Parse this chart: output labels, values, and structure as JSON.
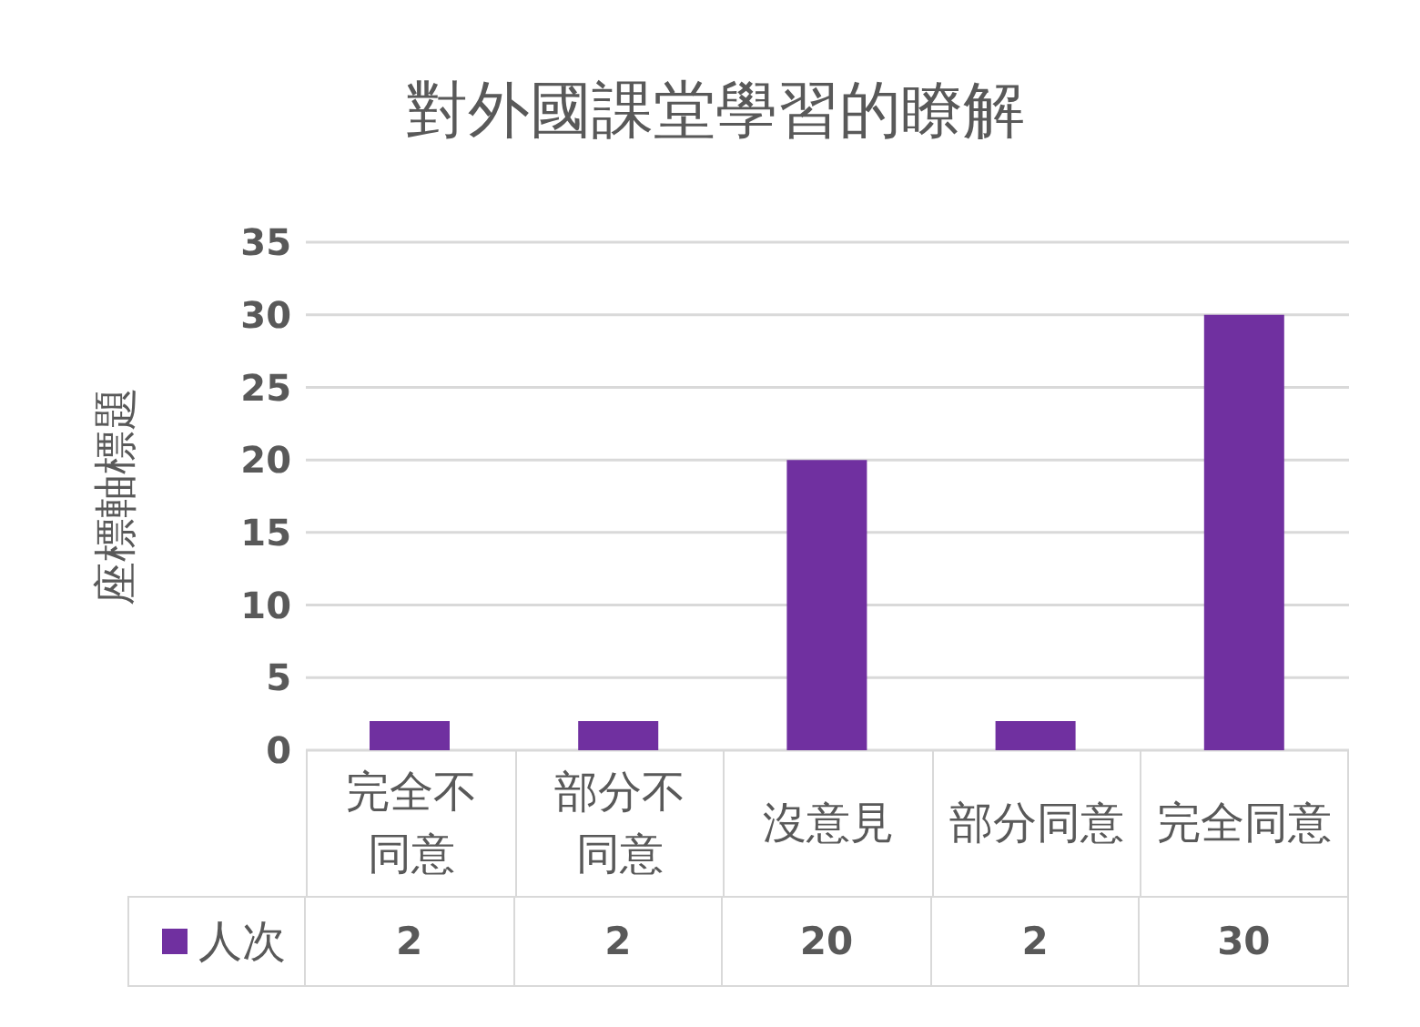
{
  "chart_data": {
    "type": "bar",
    "title": "對外國課堂學習的瞭解",
    "ylabel": "座標軸標題",
    "categories": [
      "完全不同意",
      "部分不同意",
      "沒意見",
      "部分同意",
      "完全同意"
    ],
    "series": [
      {
        "name": "人次",
        "color": "#7030a0",
        "values": [
          2,
          2,
          20,
          2,
          30
        ]
      }
    ],
    "ylim": [
      0,
      35
    ],
    "yticks": [
      0,
      5,
      10,
      15,
      20,
      25,
      30,
      35
    ],
    "grid": "y",
    "legend": "bottom",
    "data_labels": true
  }
}
